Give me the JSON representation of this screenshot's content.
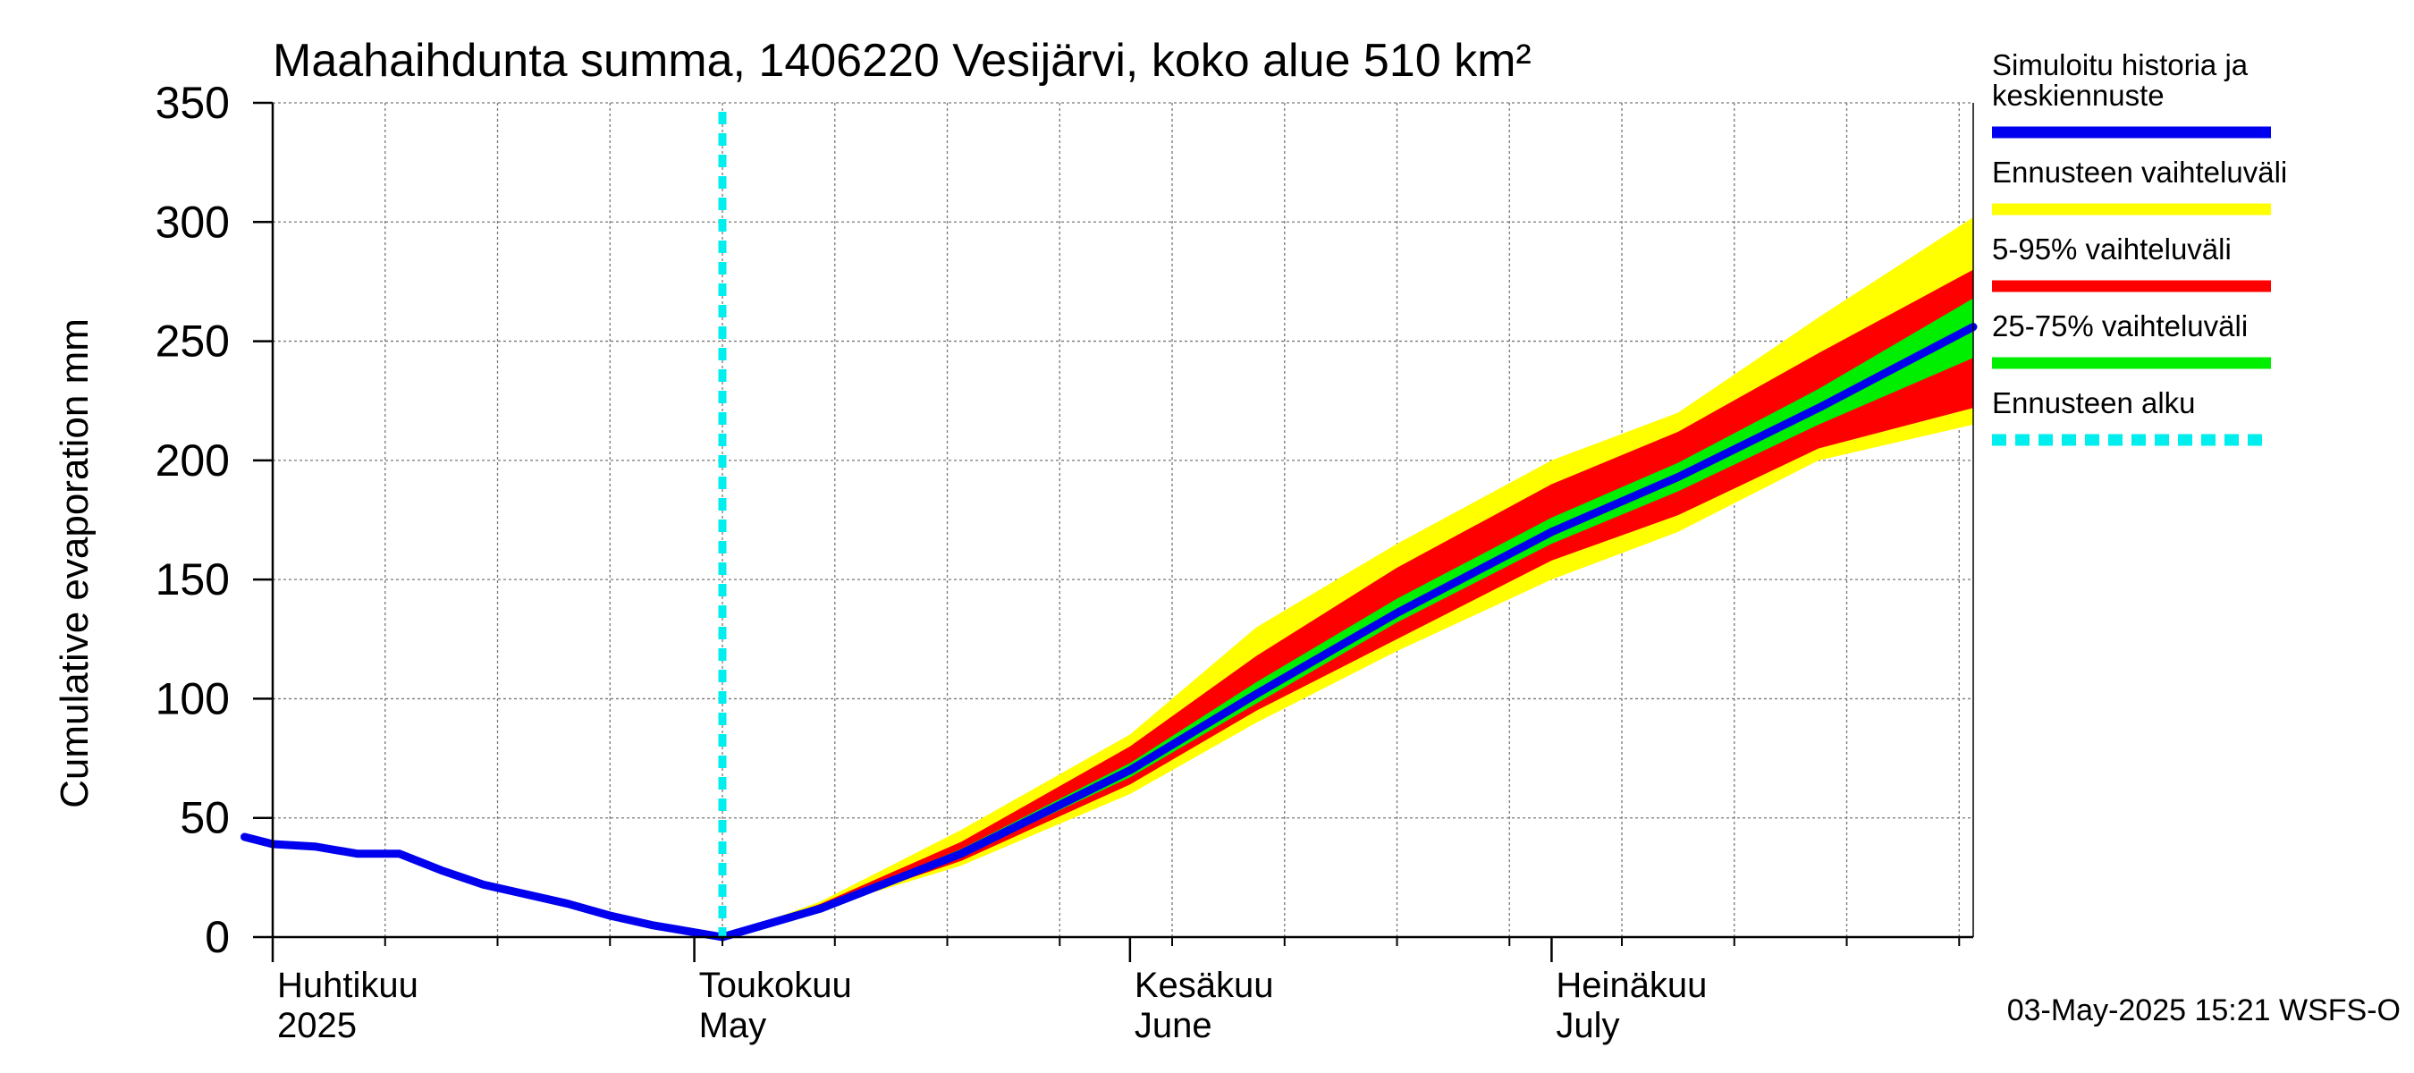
{
  "chart_data": {
    "type": "area",
    "title": "Maahaihdunta summa, 1406220 Vesijärvi, koko alue 510 km²",
    "ylabel": "Cumulative evaporation   mm",
    "xlabel": "",
    "ylim": [
      0,
      350
    ],
    "y_ticks": [
      0,
      50,
      100,
      150,
      200,
      250,
      300,
      350
    ],
    "xlim": [
      "2025-04-01",
      "2025-07-31"
    ],
    "x_month_labels": [
      {
        "date": "2025-04-01",
        "fi": "Huhtikuu",
        "en": "2025"
      },
      {
        "date": "2025-05-01",
        "fi": "Toukokuu",
        "en": "May"
      },
      {
        "date": "2025-06-01",
        "fi": "Kesäkuu",
        "en": "June"
      },
      {
        "date": "2025-07-01",
        "fi": "Heinäkuu",
        "en": "July"
      }
    ],
    "grid": true,
    "legend_position": "right",
    "forecast_start": "2025-05-03",
    "history": {
      "name": "Simuloitu historia ja keskiennuste",
      "color": "#0000ee",
      "x": [
        "2025-03-30",
        "2025-04-01",
        "2025-04-04",
        "2025-04-07",
        "2025-04-10",
        "2025-04-13",
        "2025-04-16",
        "2025-04-19",
        "2025-04-22",
        "2025-04-25",
        "2025-04-28",
        "2025-05-01",
        "2025-05-03"
      ],
      "y": [
        42,
        39,
        38,
        35,
        35,
        28,
        22,
        18,
        14,
        9,
        5,
        2,
        0
      ]
    },
    "bands": [
      {
        "name": "Ennusteen vaihteluväli",
        "color": "#ffff00",
        "x": [
          "2025-05-03",
          "2025-05-10",
          "2025-05-20",
          "2025-06-01",
          "2025-06-10",
          "2025-06-20",
          "2025-07-01",
          "2025-07-10",
          "2025-07-20",
          "2025-07-31"
        ],
        "upper": [
          0,
          15,
          45,
          85,
          130,
          165,
          200,
          220,
          260,
          302
        ],
        "lower": [
          0,
          12,
          30,
          60,
          90,
          120,
          150,
          170,
          200,
          215
        ]
      },
      {
        "name": "5-95% vaihteluväli",
        "color": "#ff0000",
        "x": [
          "2025-05-03",
          "2025-05-10",
          "2025-05-20",
          "2025-06-01",
          "2025-06-10",
          "2025-06-20",
          "2025-07-01",
          "2025-07-10",
          "2025-07-20",
          "2025-07-31"
        ],
        "upper": [
          0,
          14,
          40,
          80,
          118,
          155,
          190,
          212,
          245,
          280
        ],
        "lower": [
          0,
          12,
          32,
          64,
          95,
          125,
          158,
          177,
          205,
          222
        ]
      },
      {
        "name": "25-75% vaihteluväli",
        "color": "#00ee00",
        "x": [
          "2025-05-03",
          "2025-05-10",
          "2025-05-20",
          "2025-06-01",
          "2025-06-10",
          "2025-06-20",
          "2025-07-01",
          "2025-07-10",
          "2025-07-20",
          "2025-07-31"
        ],
        "upper": [
          0,
          13,
          37,
          73,
          107,
          142,
          176,
          199,
          230,
          268
        ],
        "lower": [
          0,
          12,
          34,
          67,
          98,
          132,
          165,
          187,
          215,
          243
        ]
      }
    ],
    "median": {
      "x": [
        "2025-05-03",
        "2025-05-10",
        "2025-05-20",
        "2025-06-01",
        "2025-06-10",
        "2025-06-20",
        "2025-07-01",
        "2025-07-10",
        "2025-07-20",
        "2025-07-31"
      ],
      "y": [
        0,
        12,
        35,
        70,
        102,
        136,
        170,
        193,
        222,
        256
      ]
    },
    "legend": [
      {
        "label": "Simuloitu historia ja keskiennuste",
        "color": "#0000ee",
        "style": "line"
      },
      {
        "label": "Ennusteen vaihteluväli",
        "color": "#ffff00",
        "style": "line"
      },
      {
        "label": "5-95% vaihteluväli",
        "color": "#ff0000",
        "style": "line"
      },
      {
        "label": "25-75% vaihteluväli",
        "color": "#00ee00",
        "style": "line"
      },
      {
        "label": "Ennusteen alku",
        "color": "#00eeee",
        "style": "dashed"
      }
    ],
    "footer": "03-May-2025 15:21 WSFS-O"
  }
}
